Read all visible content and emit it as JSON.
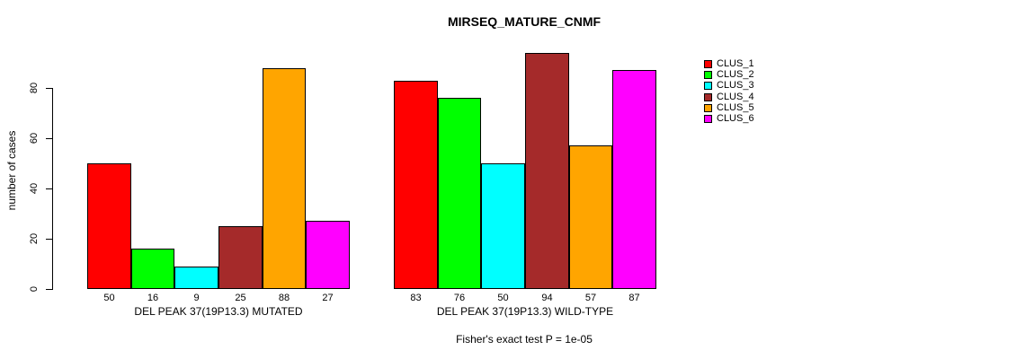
{
  "chart_data": {
    "type": "bar",
    "title": "MIRSEQ_MATURE_CNMF",
    "ylabel": "number of cases",
    "xlabel": "",
    "ylim": [
      0,
      94
    ],
    "yticks": [
      0,
      20,
      40,
      60,
      80
    ],
    "grid": false,
    "legend_position": "right-outside",
    "categories": [
      "DEL PEAK 37(19P13.3) MUTATED",
      "DEL PEAK 37(19P13.3) WILD-TYPE"
    ],
    "series": [
      {
        "name": "CLUS_1",
        "color": "#FF0000",
        "values": [
          50,
          83
        ]
      },
      {
        "name": "CLUS_2",
        "color": "#00FF00",
        "values": [
          16,
          76
        ]
      },
      {
        "name": "CLUS_3",
        "color": "#00FFFF",
        "values": [
          9,
          50
        ]
      },
      {
        "name": "CLUS_4",
        "color": "#A52A2A",
        "values": [
          25,
          94
        ]
      },
      {
        "name": "CLUS_5",
        "color": "#FFA500",
        "values": [
          88,
          57
        ]
      },
      {
        "name": "CLUS_6",
        "color": "#FF00FF",
        "values": [
          27,
          87
        ]
      }
    ],
    "bar_value_labels": true,
    "annotation": "Fisher's exact test P = 1e-05",
    "axis_color": "#000000",
    "bar_border_color": "#000000",
    "background_color": "#FFFFFF"
  }
}
